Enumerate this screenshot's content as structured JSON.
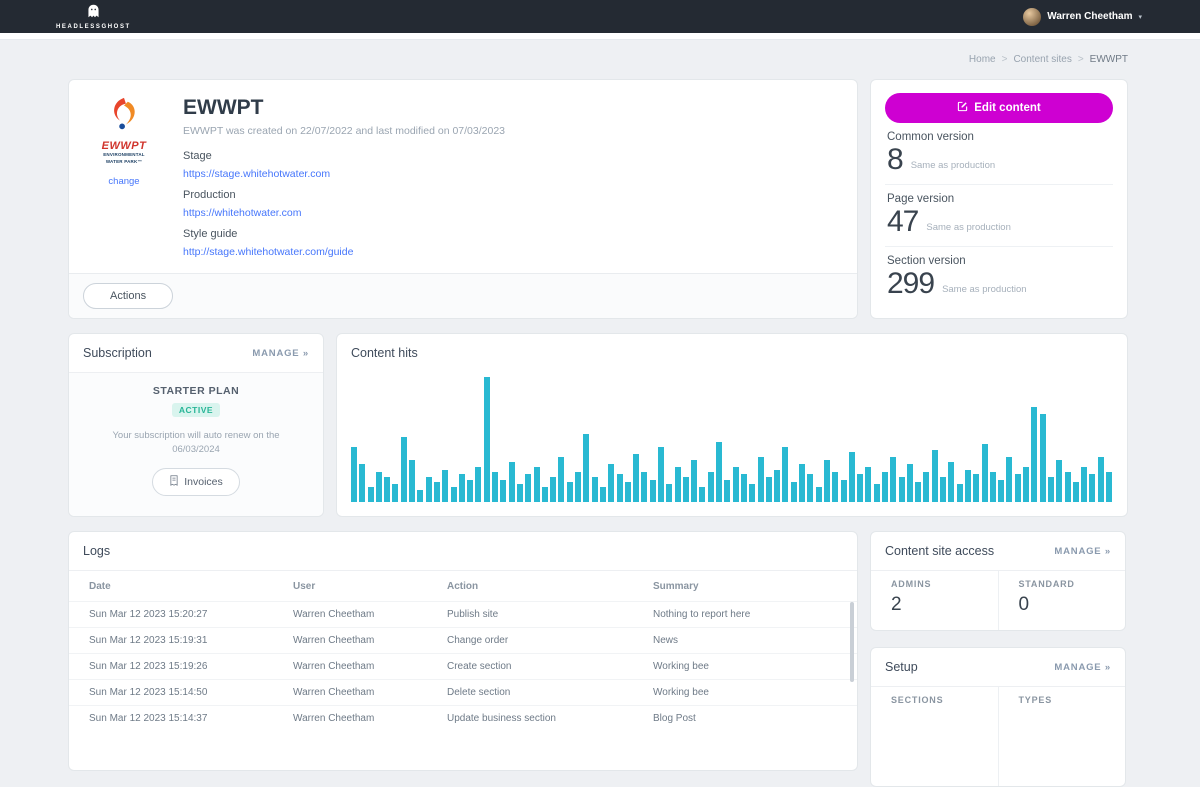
{
  "navbar": {
    "brand": "HEADLESSGHOST",
    "user": {
      "name": "Warren Cheetham"
    }
  },
  "breadcrumb": {
    "items": [
      "Home",
      "Content sites",
      "EWWPT"
    ],
    "separator": ">"
  },
  "site_card": {
    "title": "EWWPT",
    "subtitle": "EWWPT was created on 22/07/2022 and last modified on 07/03/2023",
    "logo_text": "EWWPT",
    "logo_caption": "ENVIRONMENTAL WATER PARK™",
    "change_label": "change",
    "fields": [
      {
        "label": "Stage",
        "link": "https://stage.whitehotwater.com"
      },
      {
        "label": "Production",
        "link": "https://whitehotwater.com"
      },
      {
        "label": "Style guide",
        "link": "http://stage.whitehotwater.com/guide"
      }
    ],
    "actions_label": "Actions"
  },
  "versions_card": {
    "edit_button": "Edit content",
    "items": [
      {
        "label": "Common version",
        "value": "8",
        "note": "Same as production"
      },
      {
        "label": "Page version",
        "value": "47",
        "note": "Same as production"
      },
      {
        "label": "Section version",
        "value": "299",
        "note": "Same as production"
      }
    ]
  },
  "subscription": {
    "title": "Subscription",
    "manage_label": "MANAGE",
    "plan": "STARTER PLAN",
    "status": "ACTIVE",
    "renew_text": "Your subscription will auto renew on the",
    "renew_date": "06/03/2024",
    "invoices_label": "Invoices"
  },
  "content_hits": {
    "title": "Content hits"
  },
  "chart_data": {
    "type": "bar",
    "title": "Content hits",
    "xlabel": "",
    "ylabel": "",
    "axis_labels_visible": false,
    "ylim": [
      0,
      130
    ],
    "color": "#29b9d2",
    "values": [
      55,
      38,
      15,
      30,
      25,
      18,
      65,
      42,
      12,
      25,
      20,
      32,
      15,
      28,
      22,
      35,
      125,
      30,
      22,
      40,
      18,
      28,
      35,
      15,
      25,
      45,
      20,
      30,
      68,
      25,
      15,
      38,
      28,
      20,
      48,
      30,
      22,
      55,
      18,
      35,
      25,
      42,
      15,
      30,
      60,
      22,
      35,
      28,
      18,
      45,
      25,
      32,
      55,
      20,
      38,
      28,
      15,
      42,
      30,
      22,
      50,
      28,
      35,
      18,
      30,
      45,
      25,
      38,
      20,
      30,
      52,
      25,
      40,
      18,
      32,
      28,
      58,
      30,
      22,
      45,
      28,
      35,
      95,
      88,
      25,
      42,
      30,
      20,
      35,
      28,
      45,
      30
    ]
  },
  "logs": {
    "title": "Logs",
    "columns": [
      "Date",
      "User",
      "Action",
      "Summary"
    ],
    "rows": [
      [
        "Sun Mar 12 2023 15:20:27",
        "Warren Cheetham",
        "Publish site",
        "Nothing to report here"
      ],
      [
        "Sun Mar 12 2023 15:19:31",
        "Warren Cheetham",
        "Change order",
        "News"
      ],
      [
        "Sun Mar 12 2023 15:19:26",
        "Warren Cheetham",
        "Create section",
        "Working bee"
      ],
      [
        "Sun Mar 12 2023 15:14:50",
        "Warren Cheetham",
        "Delete section",
        "Working bee"
      ],
      [
        "Sun Mar 12 2023 15:14:37",
        "Warren Cheetham",
        "Update business section",
        "Blog Post"
      ]
    ]
  },
  "access_card": {
    "title": "Content site access",
    "manage_label": "MANAGE",
    "stats": [
      {
        "label": "ADMINS",
        "value": "2"
      },
      {
        "label": "STANDARD",
        "value": "0"
      }
    ]
  },
  "setup_card": {
    "title": "Setup",
    "manage_label": "MANAGE",
    "stats": [
      {
        "label": "SECTIONS"
      },
      {
        "label": "TYPES"
      }
    ]
  },
  "icons": {
    "chevron_down": "▾",
    "manage_arrows": "»",
    "brand_icon": "ghost-icon",
    "edit_icon": "pencil-square-icon",
    "invoices_icon": "receipt-icon"
  },
  "colors": {
    "navbar_bg": "#242a33",
    "page_bg": "#eef0f3",
    "accent_magenta": "#ce00d2",
    "link_blue": "#4676fb",
    "bar_teal": "#29b9d2",
    "badge_teal": "#27b597"
  }
}
